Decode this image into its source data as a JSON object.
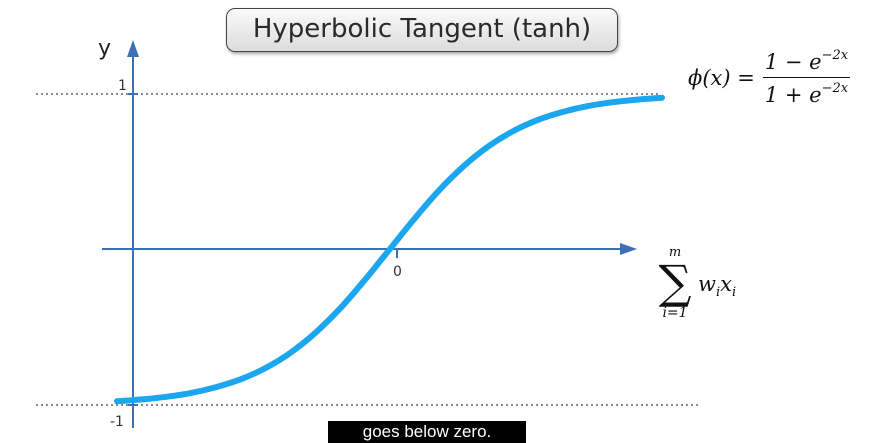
{
  "chart_data": {
    "type": "line",
    "title": "Hyperbolic Tangent (tanh)",
    "ylabel": "y",
    "y_ticks": [
      "1",
      "-1"
    ],
    "x_tick_label": "0",
    "xlim": [
      -2.2,
      2.2
    ],
    "ylim": [
      -1,
      1
    ],
    "reference_lines_y": [
      1,
      -1
    ],
    "grid": false,
    "series": [
      {
        "function": "tanh",
        "color": "#1ca6ef",
        "x": [
          -2.2,
          -2.0,
          -1.8,
          -1.6,
          -1.4,
          -1.2,
          -1.0,
          -0.8,
          -0.6,
          -0.4,
          -0.2,
          0.0,
          0.2,
          0.4,
          0.6,
          0.8,
          1.0,
          1.2,
          1.4,
          1.6,
          1.8,
          2.0,
          2.2
        ],
        "y": [
          -0.976,
          -0.964,
          -0.947,
          -0.922,
          -0.885,
          -0.834,
          -0.762,
          -0.664,
          -0.537,
          -0.38,
          -0.197,
          0.0,
          0.197,
          0.38,
          0.537,
          0.664,
          0.762,
          0.834,
          0.885,
          0.922,
          0.947,
          0.964,
          0.976
        ]
      }
    ],
    "formula": {
      "lhs": "ϕ(x) =",
      "numerator": "1 − e",
      "numerator_exp": "−2x",
      "denominator": "1 + e",
      "denominator_exp": "−2x"
    },
    "x_axis_expression": {
      "upper": "m",
      "symbol": "∑",
      "lower": "i=1",
      "term_w": "w",
      "term_w_sub": "i",
      "term_x": "x",
      "term_x_sub": "i"
    }
  },
  "colors": {
    "curve": "#1ca6ef",
    "axis": "#3d6fb5",
    "dotted": "#888888"
  },
  "caption": "goes below zero."
}
